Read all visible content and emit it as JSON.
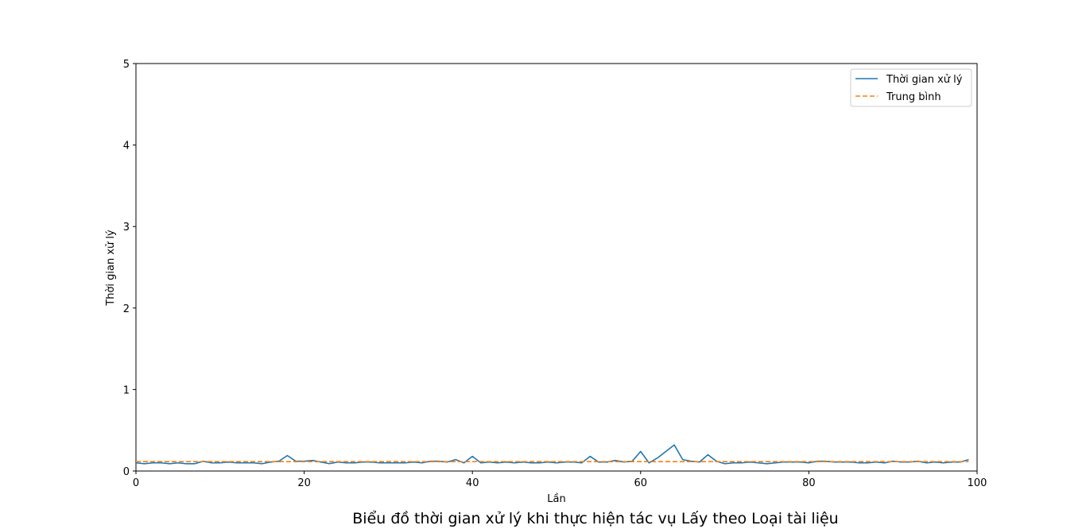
{
  "chart_data": {
    "type": "line",
    "title": "Biểu đồ thời gian xử lý khi thực hiện tác vụ Lấy theo Loại tài liệu",
    "xlabel": "Lần",
    "ylabel": "Thời gian xử lý",
    "xlim": [
      0,
      100
    ],
    "ylim": [
      0,
      5
    ],
    "xticks": [
      "0",
      "20",
      "40",
      "60",
      "80",
      "100"
    ],
    "yticks": [
      "0",
      "1",
      "2",
      "3",
      "4",
      "5"
    ],
    "legend_position": "top-right",
    "grid": false,
    "series": [
      {
        "name": "Thời gian xử lý",
        "color": "#1f77b4",
        "style": "solid",
        "x": [
          0,
          1,
          2,
          3,
          4,
          5,
          6,
          7,
          8,
          9,
          10,
          11,
          12,
          13,
          14,
          15,
          16,
          17,
          18,
          19,
          20,
          21,
          22,
          23,
          24,
          25,
          26,
          27,
          28,
          29,
          30,
          31,
          32,
          33,
          34,
          35,
          36,
          37,
          38,
          39,
          40,
          41,
          42,
          43,
          44,
          45,
          46,
          47,
          48,
          49,
          50,
          51,
          52,
          53,
          54,
          55,
          56,
          57,
          58,
          59,
          60,
          61,
          62,
          63,
          64,
          65,
          66,
          67,
          68,
          69,
          70,
          71,
          72,
          73,
          74,
          75,
          76,
          77,
          78,
          79,
          80,
          81,
          82,
          83,
          84,
          85,
          86,
          87,
          88,
          89,
          90,
          91,
          92,
          93,
          94,
          95,
          96,
          97,
          98,
          99
        ],
        "values": [
          0.1,
          0.09,
          0.1,
          0.1,
          0.09,
          0.1,
          0.09,
          0.09,
          0.12,
          0.1,
          0.1,
          0.11,
          0.1,
          0.1,
          0.1,
          0.09,
          0.11,
          0.12,
          0.19,
          0.12,
          0.12,
          0.13,
          0.11,
          0.09,
          0.11,
          0.1,
          0.1,
          0.11,
          0.11,
          0.1,
          0.1,
          0.1,
          0.1,
          0.11,
          0.1,
          0.12,
          0.12,
          0.11,
          0.14,
          0.1,
          0.18,
          0.1,
          0.11,
          0.1,
          0.11,
          0.1,
          0.11,
          0.1,
          0.1,
          0.11,
          0.1,
          0.11,
          0.11,
          0.1,
          0.18,
          0.11,
          0.11,
          0.13,
          0.11,
          0.12,
          0.24,
          0.1,
          0.16,
          0.24,
          0.32,
          0.14,
          0.12,
          0.11,
          0.2,
          0.12,
          0.09,
          0.1,
          0.1,
          0.11,
          0.1,
          0.09,
          0.1,
          0.11,
          0.11,
          0.11,
          0.1,
          0.12,
          0.12,
          0.11,
          0.11,
          0.11,
          0.1,
          0.1,
          0.11,
          0.1,
          0.12,
          0.11,
          0.11,
          0.12,
          0.1,
          0.11,
          0.1,
          0.11,
          0.11,
          0.14
        ]
      },
      {
        "name": "Trung bình",
        "color": "#ff7f0e",
        "style": "dashed",
        "x": [
          0,
          99
        ],
        "values": [
          0.115,
          0.115
        ]
      }
    ]
  }
}
